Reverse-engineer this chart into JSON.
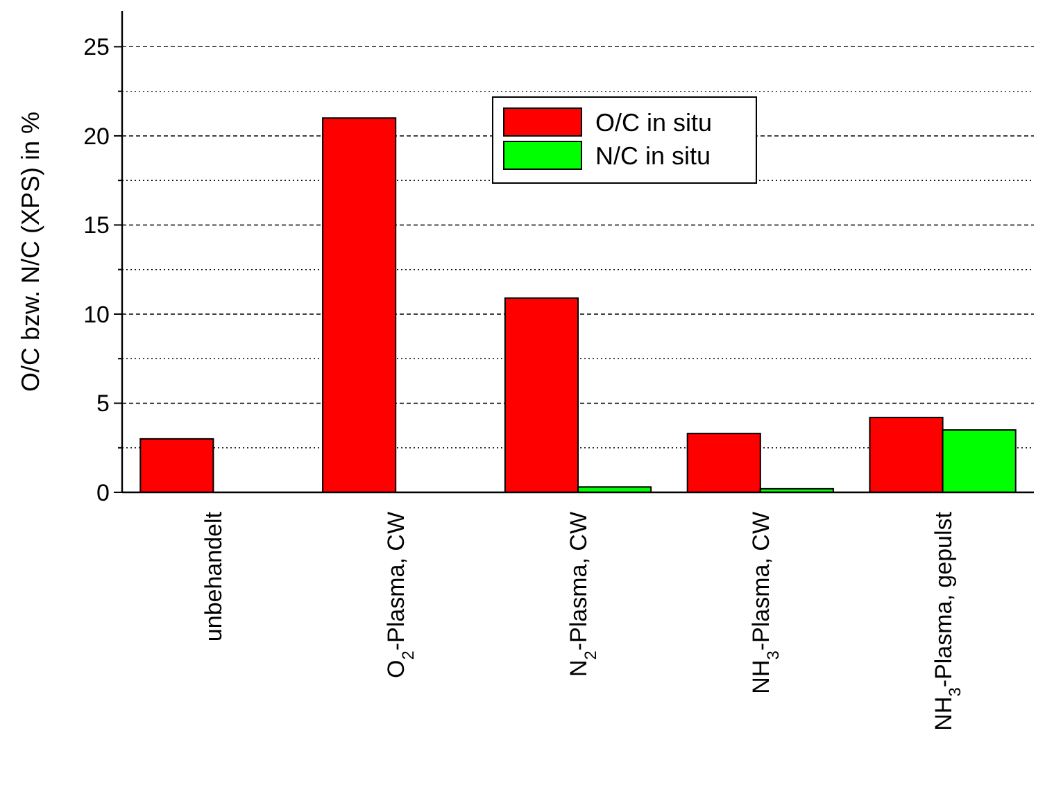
{
  "chart_data": {
    "type": "bar",
    "ylabel": "O/C bzw. N/C (XPS) in %",
    "categories": [
      "unbehandelt",
      "O$_{2}$-Plasma, CW",
      "N$_{2}$-Plasma, CW",
      "NH$_{3}$-Plasma, CW",
      "NH$_{3}$-Plasma, gepulst"
    ],
    "series": [
      {
        "name": "O/C in situ",
        "color": "#ff0000",
        "values": [
          3.0,
          21.0,
          10.9,
          3.3,
          4.2
        ]
      },
      {
        "name": "N/C in situ",
        "color": "#00ff00",
        "values": [
          0,
          0,
          0.3,
          0.2,
          3.5
        ]
      }
    ],
    "ylim": [
      0,
      27
    ],
    "yticks": [
      0,
      {
        "value": 2.5,
        "label": null
      },
      5,
      {
        "value": 7.5,
        "label": null
      },
      10,
      {
        "value": 12.5,
        "label": null
      },
      15,
      {
        "value": 17.5,
        "label": null
      },
      20,
      {
        "value": 22.5,
        "label": null
      },
      25
    ],
    "grid": true,
    "legend": "top right"
  }
}
